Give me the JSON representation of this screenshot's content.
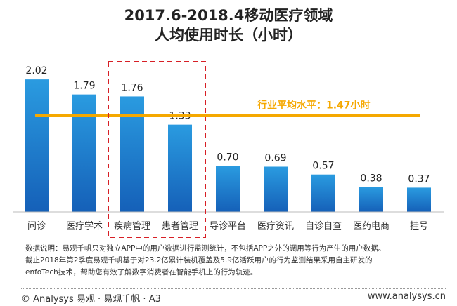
{
  "chart_data": {
    "type": "bar",
    "title": "2017.6-2018.4移动医疗领域",
    "subtitle": "人均使用时长（小时）",
    "categories": [
      "问诊",
      "医疗学术",
      "疾病管理",
      "患者管理",
      "导诊平台",
      "医疗资讯",
      "自诊自查",
      "医药电商",
      "挂号"
    ],
    "values": [
      2.02,
      1.79,
      1.76,
      1.33,
      0.7,
      0.69,
      0.57,
      0.38,
      0.37
    ],
    "data_labels": [
      "2.02",
      "1.79",
      "1.76",
      "1.33",
      "0.70",
      "0.69",
      "0.57",
      "0.38",
      "0.37"
    ],
    "ylim": [
      0,
      2.3
    ],
    "grid": false,
    "average": {
      "value": 1.47,
      "label": "行业平均水平：1.47小时"
    },
    "highlighted_categories": [
      "疾病管理",
      "患者管理"
    ],
    "colors": {
      "bar_top": "#2a9be0",
      "bar_bottom": "#1560b8",
      "average_line": "#f5a800",
      "average_text": "#f5a800",
      "highlight_box": "#d71f26"
    }
  },
  "notes": [
    "数据说明：易观千帆只对独立APP中的用户数据进行监测统计，不包括APP之外的调用等行为产生的用户数据。",
    "截止2018年第2季度易观千帆基于对23.2亿累计装机覆盖及5.9亿活跃用户的行为监测结果采用自主研发的",
    "enfoTech技术，帮助您有效了解数字消费者在智能手机上的行为轨迹。"
  ],
  "footer": {
    "left": "© Analysys 易观 · 易观千帆 · A3",
    "right": "www.analysys.cn"
  }
}
